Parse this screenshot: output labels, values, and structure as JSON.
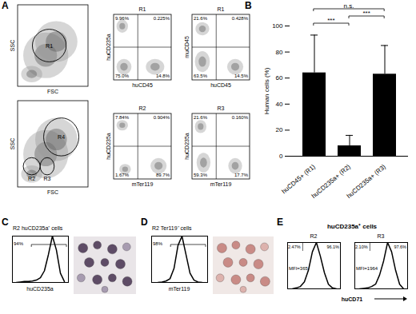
{
  "panel_labels": [
    "A",
    "B",
    "C",
    "D",
    "E"
  ],
  "panel_a": {
    "plots": [
      {
        "xlabel": "FSC",
        "ylabel": "SSC",
        "gates": [
          "R1"
        ]
      },
      {
        "title": "R1",
        "xlabel": "huCD45",
        "ylabel": "huCD235a",
        "quadrants": [
          "9.96%",
          "0.225%",
          "75.0%",
          "14.8%"
        ]
      },
      {
        "title": "R1",
        "xlabel": "huCD45",
        "ylabel": "muCD45",
        "quadrants": [
          "21.6%",
          "0.428%",
          "63.5%",
          "14.5%"
        ]
      },
      {
        "xlabel": "FSC",
        "ylabel": "SSC",
        "gates": [
          "R4",
          "R2",
          "R3"
        ]
      },
      {
        "title": "R2",
        "xlabel": "mTer119",
        "ylabel": "huCD235a",
        "quadrants": [
          "7.84%",
          "0.904%",
          "1.67%",
          "89.7%"
        ]
      },
      {
        "title": "R3",
        "xlabel": "mTer119",
        "ylabel": "huCD235a",
        "quadrants": [
          "21.6%",
          "0.160%",
          "59.3%",
          "17.7%"
        ]
      }
    ]
  },
  "chart_data": {
    "type": "bar",
    "categories": [
      "huCD45+ (R1)",
      "huCD235a+ (R2)",
      "huCD235a+ (R3)"
    ],
    "values": [
      64,
      8,
      63
    ],
    "errors": [
      29,
      8,
      22
    ],
    "color": "#000000",
    "ylabel": "Human cells (%)",
    "ylim": [
      0,
      100
    ],
    "yticks": [
      0,
      20,
      40,
      60,
      80,
      100
    ],
    "annotations": [
      {
        "text": "***",
        "from": 0,
        "to": 1
      },
      {
        "text": "***",
        "from": 1,
        "to": 2
      },
      {
        "text": "n.s.",
        "from": 0,
        "to": 2
      }
    ]
  },
  "panel_c": {
    "title": "R2 huCD235a⁺ cells",
    "type": "line",
    "xlabel": "huCD235a",
    "gate_label": "94%",
    "values": [
      0,
      1,
      2,
      2,
      3,
      5,
      10,
      25,
      60,
      100,
      70,
      20,
      2
    ],
    "ylim": [
      0,
      100
    ],
    "tick_labels": false
  },
  "panel_d": {
    "title": "R2 Ter119⁺ cells",
    "type": "line",
    "xlabel": "mTer119",
    "gate_label": "98%",
    "values": [
      0,
      1,
      3,
      8,
      30,
      80,
      100,
      60,
      20,
      5,
      1,
      0
    ],
    "ylim": [
      0,
      100
    ],
    "tick_labels": false
  },
  "panel_e": {
    "title": "huCD235a⁺ cells",
    "type": "line",
    "xlabel": "huCD71",
    "ylim": [
      0,
      100
    ],
    "tick_labels": false,
    "histograms": [
      {
        "name": "R2",
        "left_label": "2.47%",
        "right_label": "96.1%",
        "mfi": "MFI=365",
        "values": [
          0,
          2,
          5,
          15,
          40,
          80,
          100,
          70,
          35,
          10,
          2,
          0
        ]
      },
      {
        "name": "R3",
        "left_label": "2.10%",
        "right_label": "97.6%",
        "mfi": "MFI=1964",
        "values": [
          0,
          1,
          2,
          5,
          10,
          30,
          60,
          100,
          80,
          40,
          10,
          0
        ]
      }
    ]
  }
}
